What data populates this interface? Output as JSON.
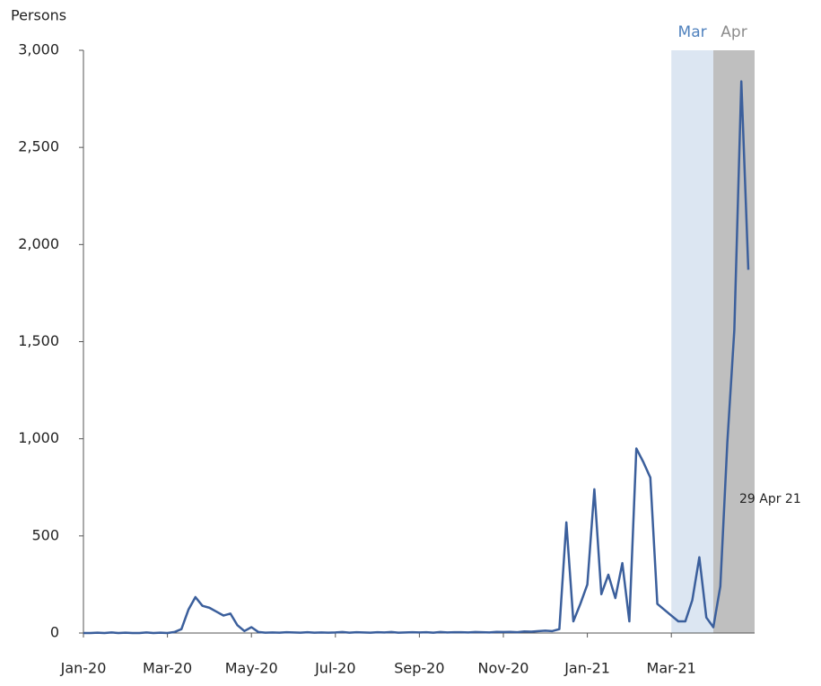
{
  "chart_data": {
    "type": "line",
    "y_label": "Persons",
    "annotation": "29 Apr 21",
    "categories": [
      "Jan-20",
      null,
      null,
      null,
      null,
      null,
      null,
      null,
      null,
      null,
      null,
      null,
      "Mar-20",
      null,
      null,
      null,
      null,
      null,
      null,
      null,
      null,
      null,
      null,
      null,
      "May-20",
      null,
      null,
      null,
      null,
      null,
      null,
      null,
      null,
      null,
      null,
      null,
      "Jul-20",
      null,
      null,
      null,
      null,
      null,
      null,
      null,
      null,
      null,
      null,
      null,
      "Sep-20",
      null,
      null,
      null,
      null,
      null,
      null,
      null,
      null,
      null,
      null,
      null,
      "Nov-20",
      null,
      null,
      null,
      null,
      null,
      null,
      null,
      null,
      null,
      null,
      null,
      "Jan-21",
      null,
      null,
      null,
      null,
      null,
      null,
      null,
      null,
      null,
      null,
      null,
      "Mar-21",
      null,
      null,
      null,
      null,
      null,
      null,
      null,
      null,
      null,
      null,
      null
    ],
    "values": [
      0,
      0,
      2,
      0,
      3,
      0,
      2,
      0,
      0,
      3,
      0,
      2,
      0,
      5,
      20,
      120,
      185,
      140,
      130,
      110,
      90,
      100,
      40,
      10,
      30,
      5,
      2,
      3,
      2,
      4,
      3,
      2,
      4,
      2,
      3,
      2,
      3,
      5,
      2,
      4,
      3,
      2,
      4,
      3,
      5,
      2,
      3,
      4,
      3,
      4,
      2,
      5,
      3,
      4,
      4,
      3,
      5,
      4,
      3,
      6,
      5,
      6,
      4,
      8,
      7,
      10,
      12,
      10,
      20,
      570,
      60,
      150,
      250,
      740,
      200,
      300,
      180,
      360,
      60,
      950,
      880,
      800,
      150,
      120,
      90,
      60,
      60,
      170,
      390,
      80,
      30,
      240,
      980,
      1560,
      2840,
      1870
    ],
    "color": "#3b5f9c",
    "ylim": [
      0,
      3000
    ],
    "yticks": [
      0,
      500,
      {
        "value": 1000,
        "label": "1,000"
      },
      {
        "value": 1500,
        "label": "1,500"
      },
      {
        "value": 2000,
        "label": "2,000"
      },
      {
        "value": 2500,
        "label": "2,500"
      },
      {
        "value": 3000,
        "label": "3,000"
      }
    ],
    "highlights": [
      {
        "label": "Mar",
        "color": "#dce6f2",
        "text_color": "#4f81bd"
      },
      {
        "label": "Apr",
        "color": "#bfbfbf",
        "text_color": "#8c8c8c"
      }
    ]
  }
}
